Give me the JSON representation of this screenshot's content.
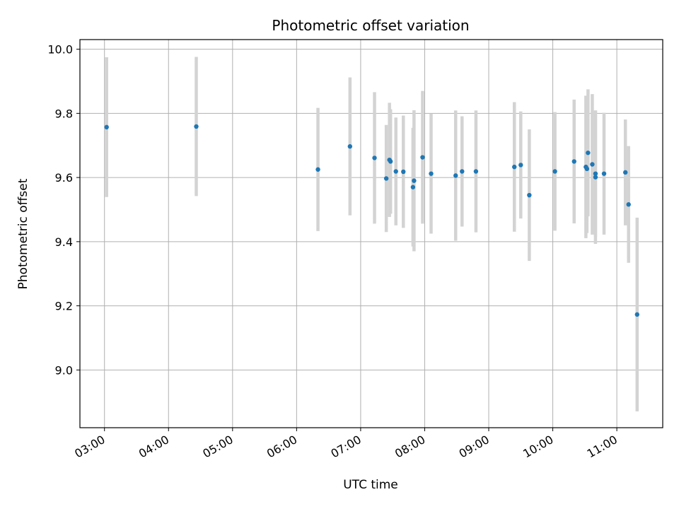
{
  "chart_data": {
    "type": "scatter",
    "title": "Photometric offset variation",
    "xlabel": "UTC time",
    "ylabel": "Photometric offset",
    "grid": true,
    "xlim": [
      "02:37",
      "11:43"
    ],
    "ylim": [
      8.82,
      10.03
    ],
    "xticks": [
      "03:00",
      "04:00",
      "05:00",
      "06:00",
      "07:00",
      "08:00",
      "09:00",
      "10:00",
      "11:00"
    ],
    "yticks": [
      "9.0",
      "9.2",
      "9.4",
      "9.6",
      "9.8",
      "10.0"
    ],
    "colors": {
      "points": "#1f77b4",
      "errorbars": "#d3d3d3",
      "grid": "#b0b0b0"
    },
    "series": [
      {
        "points": [
          {
            "x": "03:02",
            "y": 9.757,
            "err": 0.218
          },
          {
            "x": "04:26",
            "y": 9.759,
            "err": 0.217
          },
          {
            "x": "06:20",
            "y": 9.625,
            "err": 0.192
          },
          {
            "x": "06:50",
            "y": 9.697,
            "err": 0.215
          },
          {
            "x": "07:13",
            "y": 9.661,
            "err": 0.205
          },
          {
            "x": "07:24",
            "y": 9.597,
            "err": 0.167
          },
          {
            "x": "07:27",
            "y": 9.655,
            "err": 0.178
          },
          {
            "x": "07:28",
            "y": 9.65,
            "err": 0.163
          },
          {
            "x": "07:33",
            "y": 9.619,
            "err": 0.168
          },
          {
            "x": "07:40",
            "y": 9.618,
            "err": 0.175
          },
          {
            "x": "07:49",
            "y": 9.57,
            "err": 0.185
          },
          {
            "x": "07:50",
            "y": 9.59,
            "err": 0.22
          },
          {
            "x": "07:58",
            "y": 9.663,
            "err": 0.207
          },
          {
            "x": "08:06",
            "y": 9.612,
            "err": 0.187
          },
          {
            "x": "08:29",
            "y": 9.606,
            "err": 0.203
          },
          {
            "x": "08:35",
            "y": 9.619,
            "err": 0.172
          },
          {
            "x": "08:48",
            "y": 9.619,
            "err": 0.19
          },
          {
            "x": "09:24",
            "y": 9.633,
            "err": 0.202
          },
          {
            "x": "09:30",
            "y": 9.639,
            "err": 0.167
          },
          {
            "x": "09:38",
            "y": 9.545,
            "err": 0.205
          },
          {
            "x": "10:02",
            "y": 9.619,
            "err": 0.185
          },
          {
            "x": "10:20",
            "y": 9.65,
            "err": 0.193
          },
          {
            "x": "10:31",
            "y": 9.633,
            "err": 0.222
          },
          {
            "x": "10:32",
            "y": 9.627,
            "err": 0.2
          },
          {
            "x": "10:33",
            "y": 9.677,
            "err": 0.198
          },
          {
            "x": "10:37",
            "y": 9.641,
            "err": 0.219
          },
          {
            "x": "10:40",
            "y": 9.601,
            "err": 0.208
          },
          {
            "x": "10:40",
            "y": 9.612,
            "err": 0.197
          },
          {
            "x": "10:48",
            "y": 9.612,
            "err": 0.19
          },
          {
            "x": "11:08",
            "y": 9.616,
            "err": 0.165
          },
          {
            "x": "11:11",
            "y": 9.516,
            "err": 0.182
          },
          {
            "x": "11:19",
            "y": 9.173,
            "err": 0.302
          }
        ]
      }
    ]
  }
}
